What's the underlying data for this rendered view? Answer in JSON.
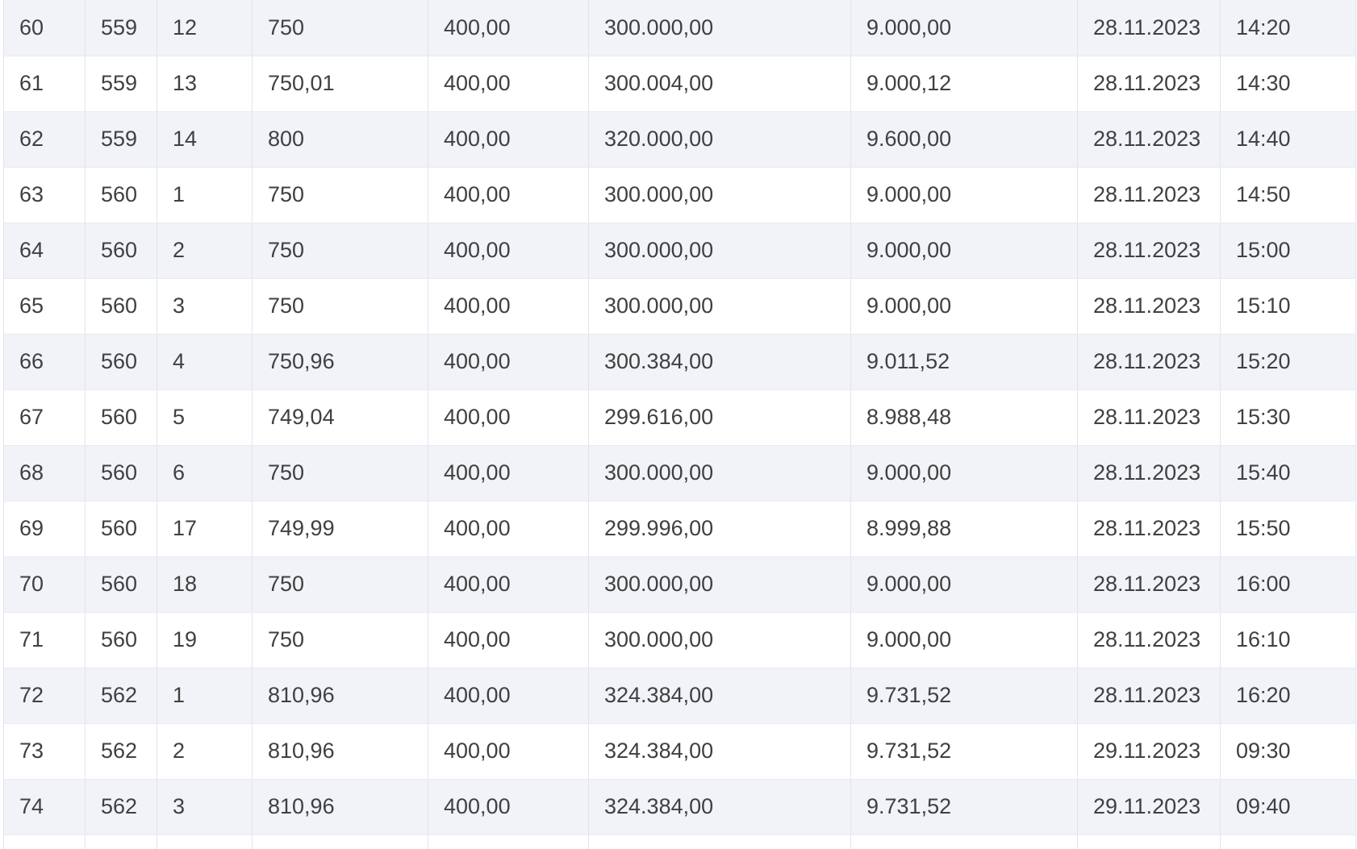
{
  "table": {
    "rows": [
      [
        "60",
        "559",
        "12",
        "750",
        "400,00",
        "300.000,00",
        "9.000,00",
        "28.11.2023",
        "14:20"
      ],
      [
        "61",
        "559",
        "13",
        "750,01",
        "400,00",
        "300.004,00",
        "9.000,12",
        "28.11.2023",
        "14:30"
      ],
      [
        "62",
        "559",
        "14",
        "800",
        "400,00",
        "320.000,00",
        "9.600,00",
        "28.11.2023",
        "14:40"
      ],
      [
        "63",
        "560",
        "1",
        "750",
        "400,00",
        "300.000,00",
        "9.000,00",
        "28.11.2023",
        "14:50"
      ],
      [
        "64",
        "560",
        "2",
        "750",
        "400,00",
        "300.000,00",
        "9.000,00",
        "28.11.2023",
        "15:00"
      ],
      [
        "65",
        "560",
        "3",
        "750",
        "400,00",
        "300.000,00",
        "9.000,00",
        "28.11.2023",
        "15:10"
      ],
      [
        "66",
        "560",
        "4",
        "750,96",
        "400,00",
        "300.384,00",
        "9.011,52",
        "28.11.2023",
        "15:20"
      ],
      [
        "67",
        "560",
        "5",
        "749,04",
        "400,00",
        "299.616,00",
        "8.988,48",
        "28.11.2023",
        "15:30"
      ],
      [
        "68",
        "560",
        "6",
        "750",
        "400,00",
        "300.000,00",
        "9.000,00",
        "28.11.2023",
        "15:40"
      ],
      [
        "69",
        "560",
        "17",
        "749,99",
        "400,00",
        "299.996,00",
        "8.999,88",
        "28.11.2023",
        "15:50"
      ],
      [
        "70",
        "560",
        "18",
        "750",
        "400,00",
        "300.000,00",
        "9.000,00",
        "28.11.2023",
        "16:00"
      ],
      [
        "71",
        "560",
        "19",
        "750",
        "400,00",
        "300.000,00",
        "9.000,00",
        "28.11.2023",
        "16:10"
      ],
      [
        "72",
        "562",
        "1",
        "810,96",
        "400,00",
        "324.384,00",
        "9.731,52",
        "28.11.2023",
        "16:20"
      ],
      [
        "73",
        "562",
        "2",
        "810,96",
        "400,00",
        "324.384,00",
        "9.731,52",
        "29.11.2023",
        "09:30"
      ],
      [
        "74",
        "562",
        "3",
        "810,96",
        "400,00",
        "324.384,00",
        "9.731,52",
        "29.11.2023",
        "09:40"
      ]
    ]
  },
  "colors": {
    "stripe": "#f1f3f8",
    "row": "#ffffff",
    "text": "#404040",
    "border": "#e1e4ea"
  }
}
